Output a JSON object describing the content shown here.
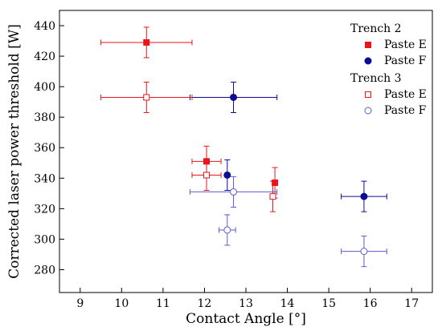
{
  "chart_data": {
    "type": "scatter",
    "xlabel": "Contact Angle [°]",
    "ylabel": "Corrected laser power threshold [W]",
    "xlim": [
      8.5,
      17.5
    ],
    "ylim": [
      265,
      450
    ],
    "xticks": [
      9,
      10,
      11,
      12,
      13,
      14,
      15,
      16,
      17
    ],
    "yticks": [
      280,
      300,
      320,
      340,
      360,
      380,
      400,
      420,
      440
    ],
    "grid": false,
    "legend": {
      "placement": "top-right",
      "groups": [
        {
          "title": "Trench 2",
          "entries": [
            "Paste E",
            "Paste F"
          ]
        },
        {
          "title": "Trench 3",
          "entries": [
            "Paste E",
            "Paste F"
          ]
        }
      ]
    },
    "series": [
      {
        "name": "Paste E",
        "group": "Trench 2",
        "marker": "square",
        "filled": true,
        "color": "#e8161b",
        "points": [
          {
            "x": 10.6,
            "y": 429,
            "xerr": 1.1,
            "yerr": 10
          },
          {
            "x": 12.05,
            "y": 351,
            "xerr": 0.35,
            "yerr": 10
          },
          {
            "x": 13.7,
            "y": 337,
            "xerr": 0,
            "yerr": 10
          }
        ]
      },
      {
        "name": "Paste F",
        "group": "Trench 2",
        "marker": "circle",
        "filled": true,
        "color": "#0c0c96",
        "points": [
          {
            "x": 12.7,
            "y": 393,
            "xerr": 1.05,
            "yerr": 10
          },
          {
            "x": 12.55,
            "y": 342,
            "xerr": 0,
            "yerr": 10
          },
          {
            "x": 15.85,
            "y": 328,
            "xerr": 0.55,
            "yerr": 10
          }
        ]
      },
      {
        "name": "Paste E",
        "group": "Trench 3",
        "marker": "square",
        "filled": false,
        "color": "#e8161b",
        "points": [
          {
            "x": 10.6,
            "y": 393,
            "xerr": 1.1,
            "yerr": 10
          },
          {
            "x": 12.05,
            "y": 342,
            "xerr": 0.35,
            "yerr": 10
          },
          {
            "x": 13.65,
            "y": 328,
            "xerr": 0,
            "yerr": 10
          }
        ]
      },
      {
        "name": "Paste F",
        "group": "Trench 3",
        "marker": "circle",
        "filled": false,
        "color": "#5a5ad2",
        "points": [
          {
            "x": 12.7,
            "y": 331,
            "xerr": 1.05,
            "yerr": 10
          },
          {
            "x": 12.55,
            "y": 306,
            "xerr": 0.2,
            "yerr": 10
          },
          {
            "x": 15.85,
            "y": 292,
            "xerr": 0.55,
            "yerr": 10
          }
        ]
      }
    ]
  }
}
